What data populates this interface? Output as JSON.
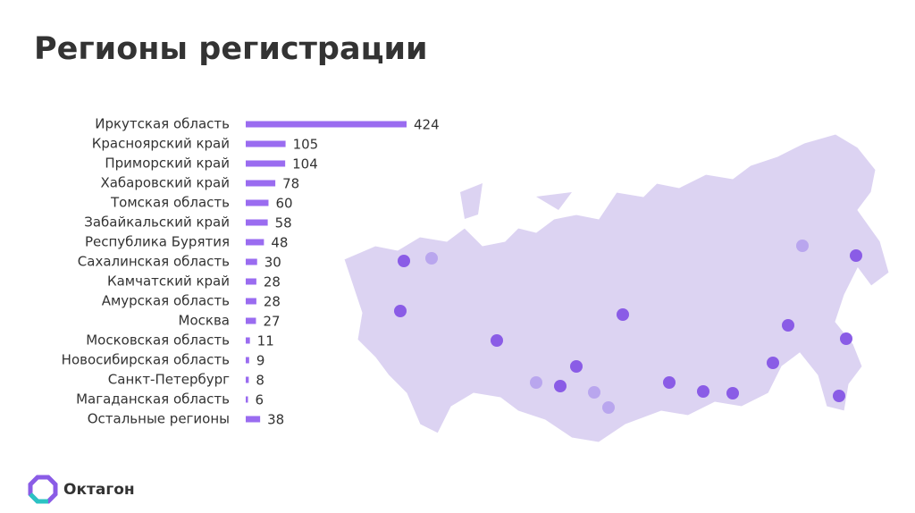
{
  "chart_data": {
    "type": "bar",
    "orientation": "horizontal",
    "title": "Регионы регистрации",
    "categories": [
      "Иркутская область",
      "Красноярский край",
      "Приморский край",
      "Хабаровский край",
      "Томская область",
      "Забайкальский край",
      "Республика Бурятия",
      "Сахалинская область",
      "Камчатский край",
      "Амурская область",
      "Москва",
      "Московская область",
      "Новосибирская область",
      "Санкт-Петербург",
      "Магаданская область",
      "Остальные регионы"
    ],
    "values": [
      424,
      105,
      104,
      78,
      60,
      58,
      48,
      30,
      28,
      28,
      27,
      11,
      9,
      8,
      6,
      38
    ],
    "color": "#9a6cf0"
  },
  "brand": "Октагон"
}
